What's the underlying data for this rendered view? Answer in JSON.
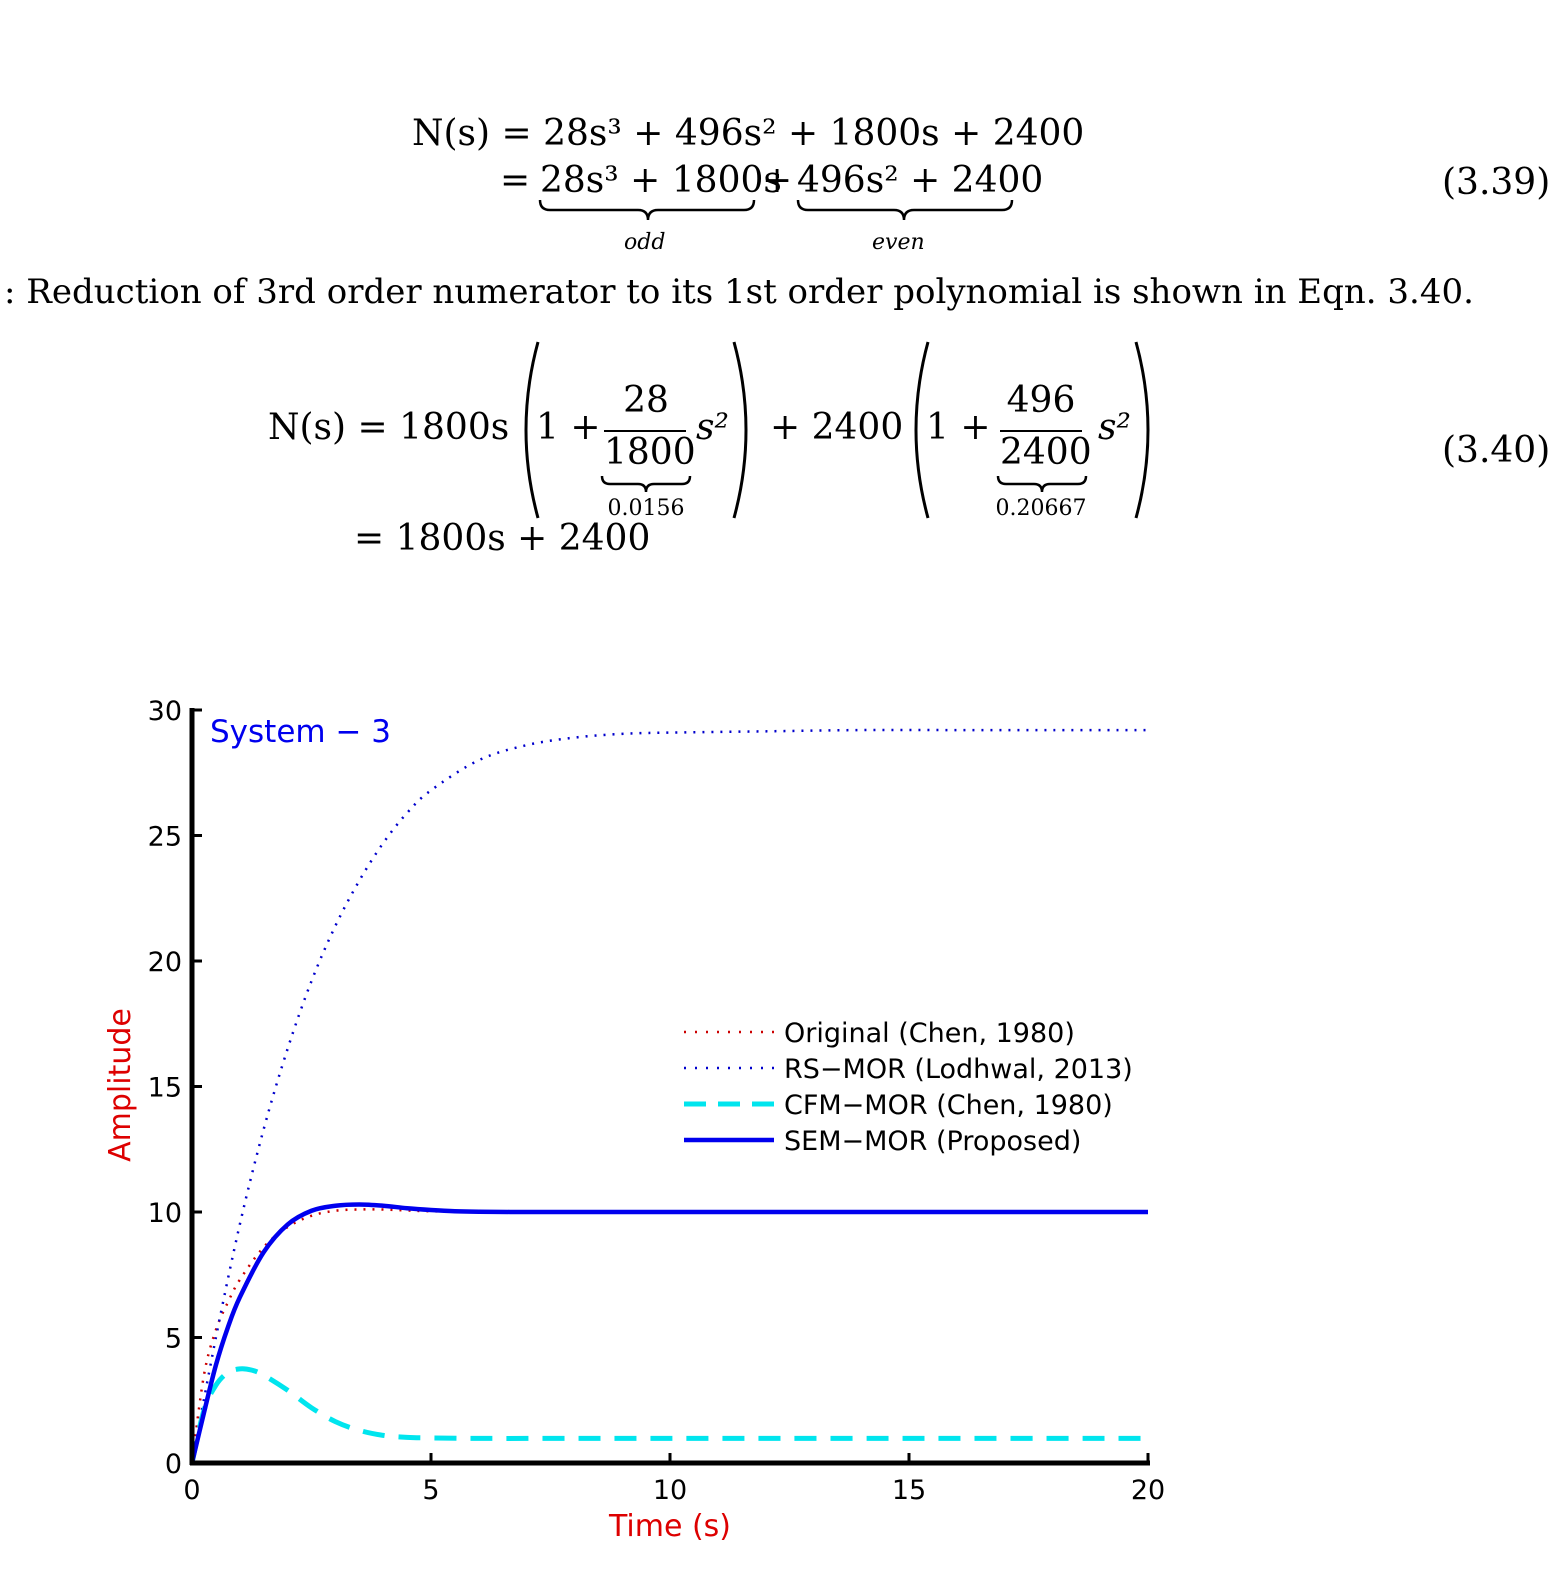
{
  "eq339": {
    "line1_lhs": "N(s) =",
    "line1_rhs": "28s³ + 496s² + 1800s + 2400",
    "line2_eq": "=",
    "line2_odd": "28s³ + 1800s",
    "line2_plus": "+",
    "line2_even": "496s² + 2400",
    "odd_label": "odd",
    "even_label": "even",
    "number": "(3.39)"
  },
  "step_text": ": Reduction of 3rd order numerator to its 1st order polynomial is shown in Eqn. 3.40.",
  "eq340": {
    "lhs": "N(s) = 1800s",
    "one_plus_a": "1 +",
    "frac1_num": "28",
    "frac1_den": "1800",
    "frac1_value": "0.0156",
    "s2_a": "s²",
    "plus_2400": "+ 2400",
    "one_plus_b": "1 +",
    "frac2_num": "496",
    "frac2_den": "2400",
    "frac2_value": "0.20667",
    "s2_b": "s²",
    "result": "= 1800s + 2400",
    "number": "(3.40)"
  },
  "chart_data": {
    "type": "line",
    "title": "System − 3",
    "xlabel": "Time (s)",
    "ylabel": "Amplitude",
    "xlim": [
      0,
      20
    ],
    "ylim": [
      0,
      30
    ],
    "xticks": [
      0,
      5,
      10,
      15,
      20
    ],
    "yticks": [
      0,
      5,
      10,
      15,
      20,
      25,
      30
    ],
    "legend_position": "center-right",
    "series": [
      {
        "name": "Original (Chen, 1980)",
        "color": "#cc0000",
        "style": "dotted",
        "x": [
          0,
          0.25,
          0.5,
          0.75,
          1,
          1.5,
          2,
          2.5,
          3,
          3.5,
          4,
          4.5,
          5,
          6,
          7,
          8,
          10,
          12,
          15,
          20
        ],
        "y": [
          0,
          3.5,
          5.3,
          6.4,
          7.3,
          8.6,
          9.4,
          9.85,
          10.05,
          10.1,
          10.1,
          10.06,
          10.03,
          10.0,
          10.0,
          10.0,
          10.0,
          10.0,
          10.0,
          10.0
        ]
      },
      {
        "name": "RS−MOR (Lodhwal, 2013)",
        "color": "#0000cc",
        "style": "dotted",
        "x": [
          0,
          0.5,
          1,
          1.5,
          2,
          2.5,
          3,
          3.5,
          4,
          4.5,
          5,
          6,
          7,
          8,
          9,
          10,
          12,
          14,
          16,
          18,
          20
        ],
        "y": [
          0,
          5.0,
          9.5,
          13.3,
          16.5,
          19.2,
          21.4,
          23.2,
          24.7,
          25.9,
          26.8,
          28.0,
          28.6,
          28.9,
          29.05,
          29.1,
          29.15,
          29.2,
          29.2,
          29.2,
          29.2
        ]
      },
      {
        "name": "CFM−MOR (Chen, 1980)",
        "color": "#00e5ee",
        "style": "dashed",
        "x": [
          0,
          0.25,
          0.5,
          0.75,
          1,
          1.25,
          1.5,
          2,
          2.5,
          3,
          3.5,
          4,
          4.5,
          5,
          6,
          8,
          10,
          15,
          20
        ],
        "y": [
          0,
          2.1,
          3.1,
          3.6,
          3.75,
          3.7,
          3.5,
          2.9,
          2.2,
          1.65,
          1.3,
          1.1,
          1.02,
          1.0,
          0.98,
          0.98,
          0.98,
          0.98,
          0.98
        ]
      },
      {
        "name": "SEM−MOR (Proposed)",
        "color": "#0000ee",
        "style": "solid",
        "x": [
          0,
          0.25,
          0.5,
          0.75,
          1,
          1.5,
          2,
          2.5,
          3,
          3.5,
          4,
          4.5,
          5,
          5.5,
          6,
          7,
          8,
          10,
          15,
          20
        ],
        "y": [
          0,
          2.0,
          3.9,
          5.4,
          6.6,
          8.4,
          9.5,
          10.05,
          10.25,
          10.3,
          10.25,
          10.15,
          10.08,
          10.03,
          10.01,
          10.0,
          10.0,
          10.0,
          10.0,
          10.0
        ]
      }
    ],
    "colors": {
      "title": "#0000ee",
      "axis_labels": "#dd0000",
      "axes": "#000000"
    }
  }
}
